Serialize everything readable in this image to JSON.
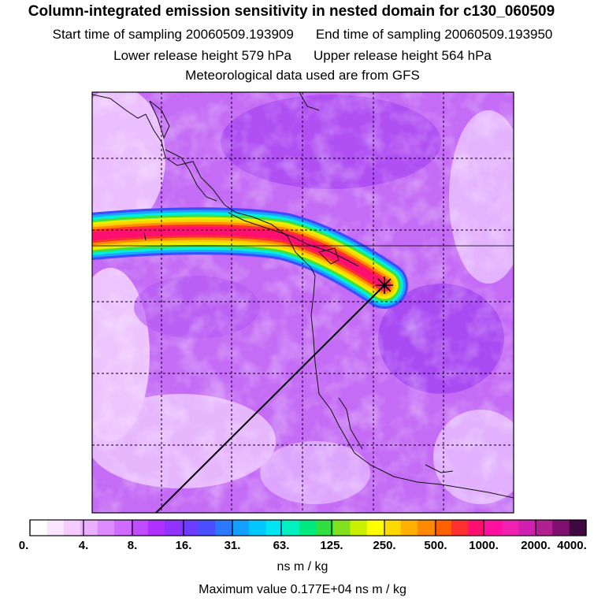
{
  "header": {
    "title": "Column-integrated emission sensitivity in nested domain for c130_060509",
    "start_sampling": "Start time of sampling 20060509.193909",
    "end_sampling": "End time of sampling 20060509.193950",
    "lower_release": "Lower release height  579 hPa",
    "upper_release": "Upper release height  564 hPa",
    "met_data": "Meteorological data used are from GFS"
  },
  "colorbar": {
    "tick_labels": [
      "0.",
      "4.",
      "8.",
      "16.",
      "31.",
      "63.",
      "125.",
      "250.",
      "500.",
      "1000.",
      "2000.",
      "4000."
    ],
    "units": "ns m / kg",
    "max_value": "Maximum value  0.177E+04 ns m / kg",
    "colors": [
      "#ffffff",
      "#fbe6ff",
      "#f4ccff",
      "#eab0ff",
      "#dd8cff",
      "#cf6bff",
      "#c04cff",
      "#b030ff",
      "#8f33ff",
      "#6c3cff",
      "#4a50ff",
      "#2c78ff",
      "#14a0ff",
      "#00c8ff",
      "#00e6f0",
      "#00f0c0",
      "#00e880",
      "#30e040",
      "#80e020",
      "#c8f000",
      "#ffff00",
      "#ffd800",
      "#ffb000",
      "#ff8a00",
      "#ff6000",
      "#ff3030",
      "#ff1070",
      "#ff10a0",
      "#f020b0",
      "#d020b0",
      "#b02090",
      "#801070",
      "#400840"
    ]
  },
  "map": {
    "background_color": "#c46cf5",
    "plume_colors": [
      "#3f4bff",
      "#1aa8ff",
      "#00f0e0",
      "#40e040",
      "#e8f000",
      "#ffd000",
      "#ff8c00",
      "#ff3030",
      "#ff1070"
    ],
    "receptor_marker": "star-icon"
  }
}
